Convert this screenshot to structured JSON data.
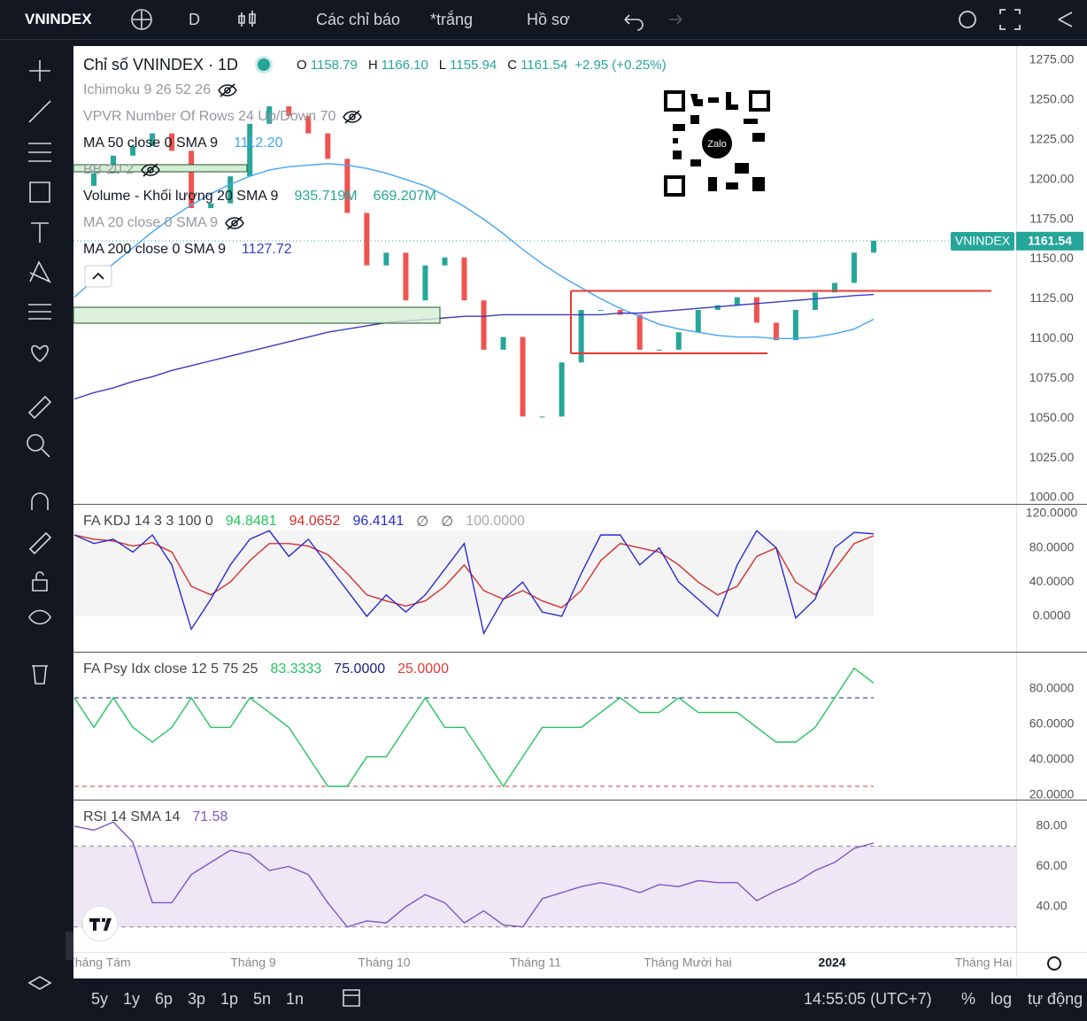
{
  "toolbar": {
    "symbol": "VNINDEX",
    "interval": "D",
    "indicators": "Các chỉ báo",
    "layout": "*trắng",
    "profile": "Hồ sơ"
  },
  "legend": {
    "title": "Chỉ số VNINDEX · 1D",
    "ohlc": [
      {
        "key": "O",
        "value": "1158.79"
      },
      {
        "key": "H",
        "value": "1166.10"
      },
      {
        "key": "L",
        "value": "1155.94"
      },
      {
        "key": "C",
        "value": "1161.54"
      }
    ],
    "change": "+2.95 (+0.25%)",
    "studies": [
      {
        "name": "Ichimoku 9 26 52 26"
      },
      {
        "name": "VPVR Number Of Rows 24 Up/Down 70"
      },
      {
        "name": "MA 50 close 0 SMA 9",
        "values": [
          "1112.20"
        ]
      },
      {
        "name": "BB 20 2"
      },
      {
        "name": "Volume - Khối lượng 20 SMA 9",
        "values": [
          "935.719M",
          "669.207M"
        ]
      },
      {
        "name": "MA 20 close 0 SMA 9"
      },
      {
        "name": "MA 200 close 0 SMA 9",
        "values": [
          "1127.72"
        ]
      }
    ]
  },
  "qr_label": "Zalo",
  "price_tag": "VNINDEX",
  "chart_data": [
    {
      "type": "line",
      "categories": [
        null,
        null,
        null,
        null,
        null,
        null,
        null,
        null,
        null,
        null,
        null,
        null,
        null,
        null,
        null,
        null,
        null,
        null,
        null,
        null,
        null,
        null,
        null,
        null,
        null,
        null,
        null,
        null,
        null,
        null,
        null,
        null,
        null,
        null,
        null,
        null,
        null,
        null,
        null,
        null,
        null,
        null
      ],
      "ylim": [
        996.1,
        1283.9
      ],
      "yticks": [
        {
          "value": 1000,
          "label": "1000.00"
        },
        {
          "value": 1025,
          "label": "1025.00"
        },
        {
          "value": 1050,
          "label": "1050.00"
        },
        {
          "value": 1075,
          "label": "1075.00"
        },
        {
          "value": 1100,
          "label": "1100.00"
        },
        {
          "value": 1125,
          "label": "1125.00"
        },
        {
          "value": 1150,
          "label": "1150.00"
        },
        {
          "value": 1175,
          "label": "1175.00"
        },
        {
          "value": 1200,
          "label": "1200.00"
        },
        {
          "value": 1225,
          "label": "1225.00"
        },
        {
          "value": 1250,
          "label": "1250.00"
        },
        {
          "value": 1275,
          "label": "1275.00"
        }
      ],
      "series": [
        {
          "name": "VNINDEX",
          "style": "bodies",
          "up_color": "#26a69a",
          "down_color": "#ef5350",
          "values": [
            1196,
            1204,
            1215,
            1221,
            1229,
            1218,
            1182,
            1185,
            1202,
            1235,
            1246,
            1240,
            1229,
            1213,
            1179,
            1146,
            1154,
            1124,
            1146,
            1151,
            1124,
            1093,
            1101,
            1051,
            1051,
            1085,
            1118,
            1118,
            1115,
            1093,
            1093,
            1104,
            1118,
            1121,
            1126,
            1110,
            1099,
            1118,
            1129,
            1135,
            1154,
            1161.54
          ]
        },
        {
          "color": "#42a5f5",
          "values": [
            1126,
            1137,
            1147,
            1157,
            1167,
            1176,
            1184,
            1191,
            1197,
            1202,
            1206,
            1208,
            1209,
            1210,
            1209,
            1207,
            1204,
            1200,
            1196,
            1190,
            1183,
            1175,
            1166,
            1156,
            1147,
            1139,
            1132,
            1125,
            1119,
            1114,
            1109,
            1106,
            1104,
            1102,
            1101,
            1101,
            1100,
            1100,
            1101,
            1103,
            1106,
            1112.2
          ]
        },
        {
          "color": "#3a3ac8",
          "values": [
            1062,
            1066,
            1069,
            1073,
            1076,
            1080,
            1083,
            1086,
            1089,
            1092,
            1095,
            1098,
            1101,
            1104,
            1106,
            1108,
            1110,
            1111,
            1112,
            1113,
            1114,
            1114,
            1115,
            1115,
            1115,
            1115,
            1115,
            1115,
            1116,
            1116,
            1117,
            1118,
            1119,
            1120,
            1121,
            1122,
            1123,
            1124,
            1125,
            1126,
            1127,
            1127.72
          ]
        }
      ]
    },
    {
      "type": "line",
      "title": "FA KDJ 14 3 3 100 0",
      "readouts": [
        {
          "text": "94.8481",
          "color": "#22c55e"
        },
        {
          "text": "94.0652",
          "color": "#d32f2f"
        },
        {
          "text": "96.4141",
          "color": "#2b2bd1"
        },
        {
          "text": "∅",
          "color": "#555"
        },
        {
          "text": "∅",
          "color": "#555"
        },
        {
          "text": "100.0000",
          "color": "#aaa"
        }
      ],
      "ylim": [
        -41.4,
        130.3
      ],
      "band": [
        0,
        100
      ],
      "band_color": "#f4f4f4",
      "yticks": [
        {
          "value": 120,
          "label": "120.0000"
        },
        {
          "value": 80,
          "label": "80.0000"
        },
        {
          "value": 40,
          "label": "40.0000"
        },
        {
          "value": 0,
          "label": "0.0000"
        }
      ],
      "series": [
        {
          "color": "#d32f2f",
          "values": [
            95,
            90,
            88,
            82,
            86,
            75,
            35,
            25,
            40,
            65,
            85,
            85,
            82,
            72,
            50,
            25,
            18,
            12,
            18,
            35,
            60,
            30,
            20,
            30,
            18,
            10,
            30,
            65,
            85,
            80,
            75,
            60,
            40,
            25,
            35,
            70,
            80,
            40,
            25,
            55,
            85,
            94.0652
          ]
        },
        {
          "color": "#2b2bd1",
          "values": [
            95,
            85,
            90,
            75,
            95,
            60,
            -15,
            20,
            60,
            90,
            100,
            70,
            90,
            60,
            30,
            0,
            25,
            5,
            25,
            55,
            85,
            -20,
            20,
            40,
            5,
            0,
            50,
            95,
            95,
            60,
            80,
            40,
            20,
            0,
            60,
            100,
            80,
            -2,
            20,
            80,
            98,
            96.4141
          ]
        }
      ]
    },
    {
      "type": "line",
      "title": "FA Psy Idx close 12 5 75 25",
      "readouts": [
        {
          "text": "83.3333",
          "color": "#22c55e"
        },
        {
          "text": "75.0000",
          "color": "#1a237e"
        },
        {
          "text": "25.0000",
          "color": "#e53935"
        }
      ],
      "ylim": [
        17.5,
        100.5
      ],
      "yticks": [
        {
          "value": 80,
          "label": "80.0000"
        },
        {
          "value": 60,
          "label": "60.0000"
        },
        {
          "value": 40,
          "label": "40.0000"
        },
        {
          "value": 20,
          "label": "20.0000"
        }
      ],
      "levels": [
        {
          "value": 75,
          "color": "#1a237e"
        },
        {
          "value": 25,
          "color": "#e53935"
        }
      ],
      "series": [
        {
          "color": "#22c55e",
          "values": [
            75,
            58.3,
            75,
            58.3,
            50,
            58.3,
            75,
            58.3,
            58.3,
            75,
            66.7,
            58.3,
            41.7,
            25,
            25,
            41.7,
            41.7,
            58.3,
            75,
            58.3,
            58.3,
            41.7,
            25,
            41.7,
            58.3,
            58.3,
            58.3,
            66.7,
            75,
            66.7,
            66.7,
            75,
            66.7,
            66.7,
            66.7,
            58.3,
            50,
            50,
            58.3,
            75,
            91.7,
            83.3333
          ]
        }
      ]
    },
    {
      "type": "line",
      "title": "RSI 14 SMA 14",
      "readouts": [
        {
          "text": "71.58",
          "color": "#7e57c2"
        }
      ],
      "ylim": [
        17.6,
        92.7
      ],
      "band": [
        30,
        70
      ],
      "band_color": "#ede7f6",
      "yticks": [
        {
          "value": 80,
          "label": "80.00"
        },
        {
          "value": 60,
          "label": "60.00"
        },
        {
          "value": 40,
          "label": "40.00"
        }
      ],
      "levels": [
        {
          "value": 70,
          "color": "#888"
        },
        {
          "value": 30,
          "color": "#888"
        }
      ],
      "series": [
        {
          "color": "#7e57c2",
          "values": [
            80,
            78,
            82,
            72,
            42,
            42,
            56,
            62,
            68,
            66,
            58,
            60,
            56,
            42,
            30,
            33,
            32,
            40,
            46,
            42,
            32,
            38,
            31,
            30,
            44,
            47,
            50,
            52,
            50,
            47,
            51,
            50,
            53,
            52,
            52,
            43,
            48,
            52,
            58,
            62,
            69,
            71.58
          ]
        }
      ]
    }
  ],
  "time_axis": [
    "Tháng Tám",
    "Tháng 9",
    "Tháng 10",
    "Tháng 11",
    "Tháng Mười hai",
    "2024",
    "Tháng Hai"
  ],
  "bottom_bar": {
    "ranges": [
      "5y",
      "1y",
      "6p",
      "3p",
      "1p",
      "5n",
      "1n"
    ],
    "clock": "14:55:05 (UTC+7)",
    "percent": "%",
    "log": "log",
    "auto": "tự động"
  }
}
